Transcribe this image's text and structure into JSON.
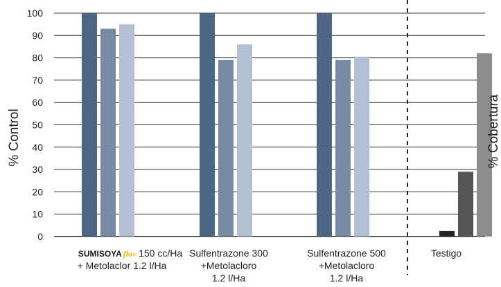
{
  "chart_data": {
    "type": "bar",
    "title": "",
    "ylabel_left": "% Control",
    "ylabel_right": "% Cobertura",
    "ylim": [
      0,
      100
    ],
    "yticks": [
      0,
      10,
      20,
      30,
      40,
      50,
      60,
      70,
      80,
      90,
      100
    ],
    "grid": "horizontal",
    "separator": "dashed vertical line before Testigo",
    "categories": [
      {
        "brand": "SUMISOYA",
        "brand_suffix": "flo",
        "lines": [
          "150 cc/Ha",
          "+ Metolaclor 1.2 l/Ha"
        ],
        "values": [
          100,
          93,
          95
        ],
        "colors": [
          "#4d6683",
          "#768aa3",
          "#b4bfd3"
        ]
      },
      {
        "lines": [
          "Sulfentrazone 300",
          "+Metolacloro",
          "1.2 l/Ha"
        ],
        "values": [
          100,
          79,
          86
        ],
        "colors": [
          "#4d6683",
          "#768aa3",
          "#b4bfd3"
        ]
      },
      {
        "lines": [
          "Sulfentrazone 500",
          "+Metolacloro",
          "1.2 l/Ha"
        ],
        "values": [
          100,
          79,
          80.5
        ],
        "colors": [
          "#4d6683",
          "#768aa3",
          "#b4bfd3"
        ]
      },
      {
        "lines": [
          "Testigo"
        ],
        "values": [
          2.5,
          29,
          82
        ],
        "colors": [
          "#262626",
          "#555555",
          "#8c8c8c"
        ]
      }
    ]
  }
}
